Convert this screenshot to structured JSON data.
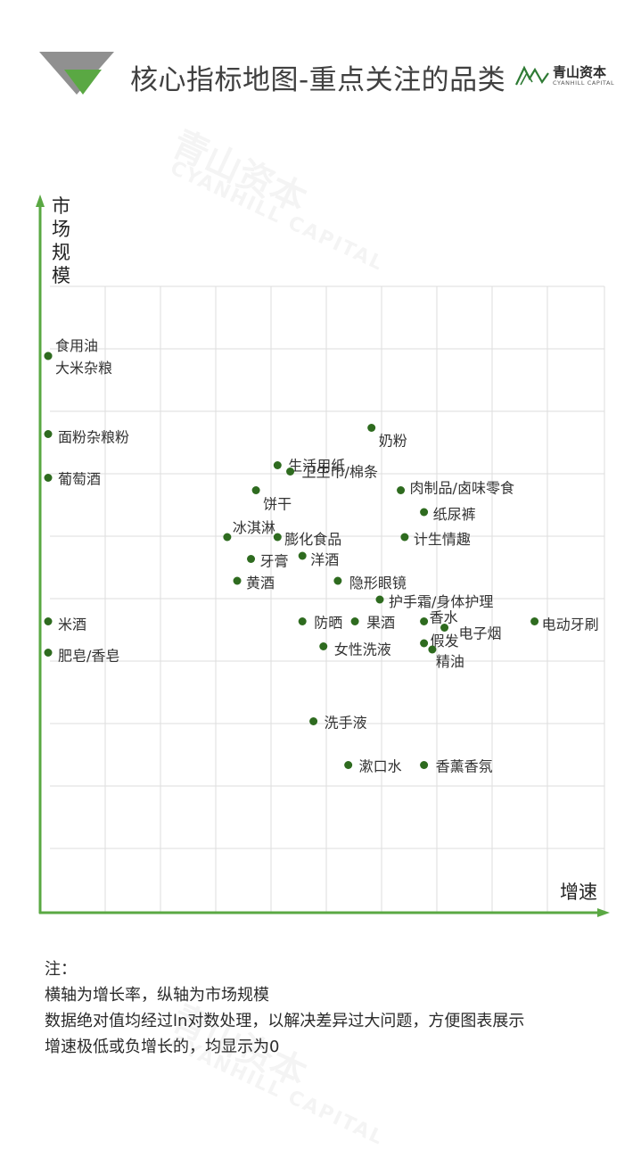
{
  "header": {
    "title": "核心指标地图-重点关注的品类",
    "brand_name": "青山资本",
    "brand_sub": "CYANHILL CAPITAL",
    "accent_green": "#5aa843",
    "accent_gray": "#8a8a8a"
  },
  "watermark": {
    "text_cn": "青山资本",
    "text_en": "CYANHILL CAPITAL"
  },
  "chart_data": {
    "type": "scatter",
    "ylabel": "市场规模",
    "xlabel": "增速",
    "grid": true,
    "point_color": "#2e6b1f",
    "axis_color": "#5aa843",
    "points": [
      {
        "label": "食用油",
        "x": 0.0,
        "y": 8.9
      },
      {
        "label": "大米杂粮",
        "x": 0.0,
        "y": 8.9
      },
      {
        "label": "面粉杂粮粉",
        "x": 0.0,
        "y": 7.65
      },
      {
        "label": "葡萄酒",
        "x": 0.0,
        "y": 6.95
      },
      {
        "label": "米酒",
        "x": 0.0,
        "y": 4.65
      },
      {
        "label": "肥皂/香皂",
        "x": 0.0,
        "y": 4.15
      },
      {
        "label": "奶粉",
        "x": 5.85,
        "y": 7.75
      },
      {
        "label": "生活用纸",
        "x": 4.15,
        "y": 7.15
      },
      {
        "label": "卫生巾/棉条",
        "x": 4.38,
        "y": 7.05
      },
      {
        "label": "饼干",
        "x": 3.76,
        "y": 6.75
      },
      {
        "label": "肉制品/卤味零食",
        "x": 6.38,
        "y": 6.75
      },
      {
        "label": "纸尿裤",
        "x": 6.8,
        "y": 6.4
      },
      {
        "label": "冰淇淋",
        "x": 3.24,
        "y": 6.0
      },
      {
        "label": "膨化食品",
        "x": 4.15,
        "y": 6.0
      },
      {
        "label": "计生情趣",
        "x": 6.45,
        "y": 6.0
      },
      {
        "label": "牙膏",
        "x": 3.67,
        "y": 5.65
      },
      {
        "label": "洋酒",
        "x": 4.6,
        "y": 5.7
      },
      {
        "label": "黄酒",
        "x": 3.42,
        "y": 5.3
      },
      {
        "label": "隐形眼镜",
        "x": 5.24,
        "y": 5.3
      },
      {
        "label": "护手霜/身体护理",
        "x": 6.0,
        "y": 5.0
      },
      {
        "label": "防晒",
        "x": 4.6,
        "y": 4.65
      },
      {
        "label": "果酒",
        "x": 5.55,
        "y": 4.65
      },
      {
        "label": "香水",
        "x": 6.8,
        "y": 4.65
      },
      {
        "label": "电子烟",
        "x": 7.17,
        "y": 4.55
      },
      {
        "label": "电动牙刷",
        "x": 8.8,
        "y": 4.65
      },
      {
        "label": "女性洗液",
        "x": 4.98,
        "y": 4.25
      },
      {
        "label": "假发",
        "x": 6.8,
        "y": 4.3
      },
      {
        "label": "精油",
        "x": 6.95,
        "y": 4.2
      },
      {
        "label": "洗手液",
        "x": 4.8,
        "y": 3.05
      },
      {
        "label": "漱口水",
        "x": 5.43,
        "y": 2.35
      },
      {
        "label": "香薰香氛",
        "x": 6.8,
        "y": 2.35
      }
    ]
  },
  "notes": {
    "heading": "注：",
    "lines": [
      "横轴为增长率，纵轴为市场规模",
      "数据绝对值均经过ln对数处理，以解决差异过大问题，方便图表展示",
      "增速极低或负增长的，均显示为0"
    ]
  }
}
